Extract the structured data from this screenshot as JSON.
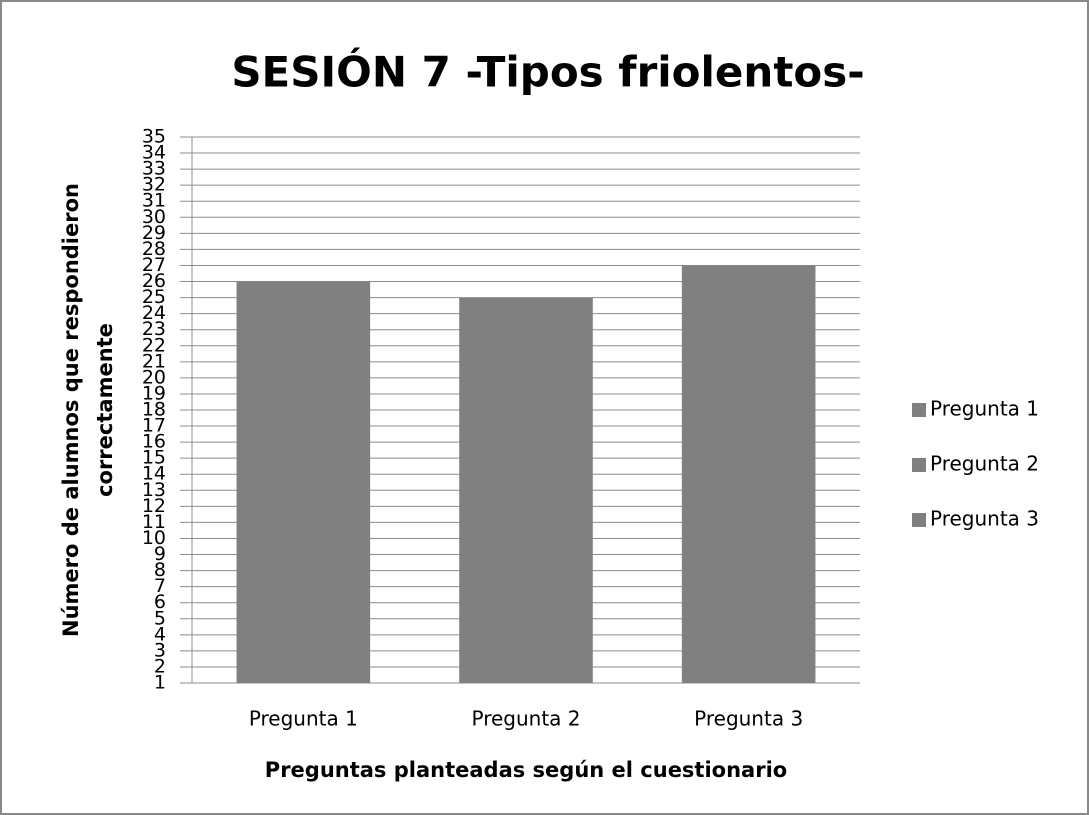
{
  "chart_data": {
    "type": "bar",
    "title": "SESIÓN 7 -Tipos friolentos-",
    "x_label": "Preguntas planteadas según el cuestionario",
    "y_label": [
      "Número de alumnos que respondieron",
      "correctamente"
    ],
    "categories": [
      "Pregunta 1",
      "Pregunta 2",
      "Pregunta 3"
    ],
    "values": [
      26,
      25,
      27
    ],
    "color": "#808080",
    "legend": [
      "Pregunta 1",
      "Pregunta 2",
      "Pregunta 3"
    ],
    "ylim": [
      1,
      35
    ],
    "yticks": [
      1,
      2,
      3,
      4,
      5,
      6,
      7,
      8,
      9,
      10,
      11,
      12,
      13,
      14,
      15,
      16,
      17,
      18,
      19,
      20,
      21,
      22,
      23,
      24,
      25,
      26,
      27,
      28,
      29,
      30,
      31,
      32,
      33,
      34,
      35
    ],
    "grid": true
  }
}
